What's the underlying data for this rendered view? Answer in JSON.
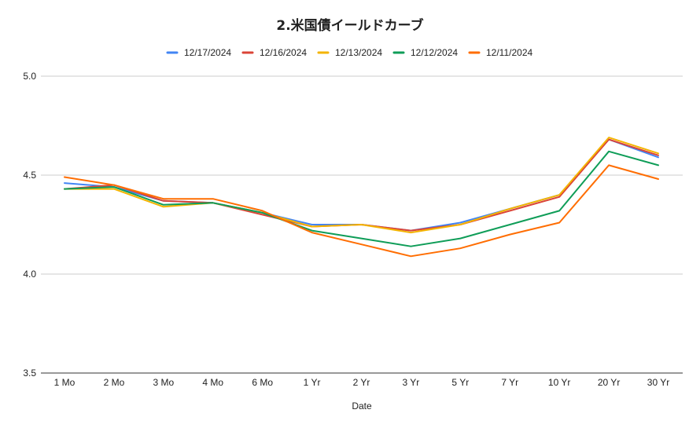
{
  "chart_data": {
    "type": "line",
    "title": "2.米国債イールドカーブ",
    "xlabel": "Date",
    "ylabel": "",
    "ylim": [
      3.5,
      5.0
    ],
    "yticks": [
      "3.5",
      "4.0",
      "4.5",
      "5.0"
    ],
    "grid": true,
    "legend_position": "top",
    "categories": [
      "1 Mo",
      "2 Mo",
      "3 Mo",
      "4 Mo",
      "6 Mo",
      "1 Yr",
      "2 Yr",
      "3 Yr",
      "5 Yr",
      "7 Yr",
      "10 Yr",
      "20 Yr",
      "30 Yr"
    ],
    "series": [
      {
        "name": "12/17/2024",
        "color": "#4285f4",
        "values": [
          4.46,
          4.44,
          4.37,
          4.36,
          4.31,
          4.25,
          4.25,
          4.22,
          4.26,
          4.33,
          4.4,
          4.68,
          4.59
        ]
      },
      {
        "name": "12/16/2024",
        "color": "#db4437",
        "values": [
          4.43,
          4.45,
          4.37,
          4.36,
          4.3,
          4.24,
          4.25,
          4.22,
          4.25,
          4.32,
          4.39,
          4.68,
          4.6
        ]
      },
      {
        "name": "12/13/2024",
        "color": "#f4b400",
        "values": [
          4.43,
          4.43,
          4.34,
          4.36,
          4.31,
          4.24,
          4.25,
          4.21,
          4.25,
          4.33,
          4.4,
          4.69,
          4.61
        ]
      },
      {
        "name": "12/12/2024",
        "color": "#0f9d58",
        "values": [
          4.43,
          4.44,
          4.35,
          4.36,
          4.31,
          4.22,
          4.18,
          4.14,
          4.18,
          4.25,
          4.32,
          4.62,
          4.55
        ]
      },
      {
        "name": "12/11/2024",
        "color": "#ff6d01",
        "values": [
          4.49,
          4.45,
          4.38,
          4.38,
          4.32,
          4.21,
          4.15,
          4.09,
          4.13,
          4.2,
          4.26,
          4.55,
          4.48
        ]
      }
    ]
  }
}
